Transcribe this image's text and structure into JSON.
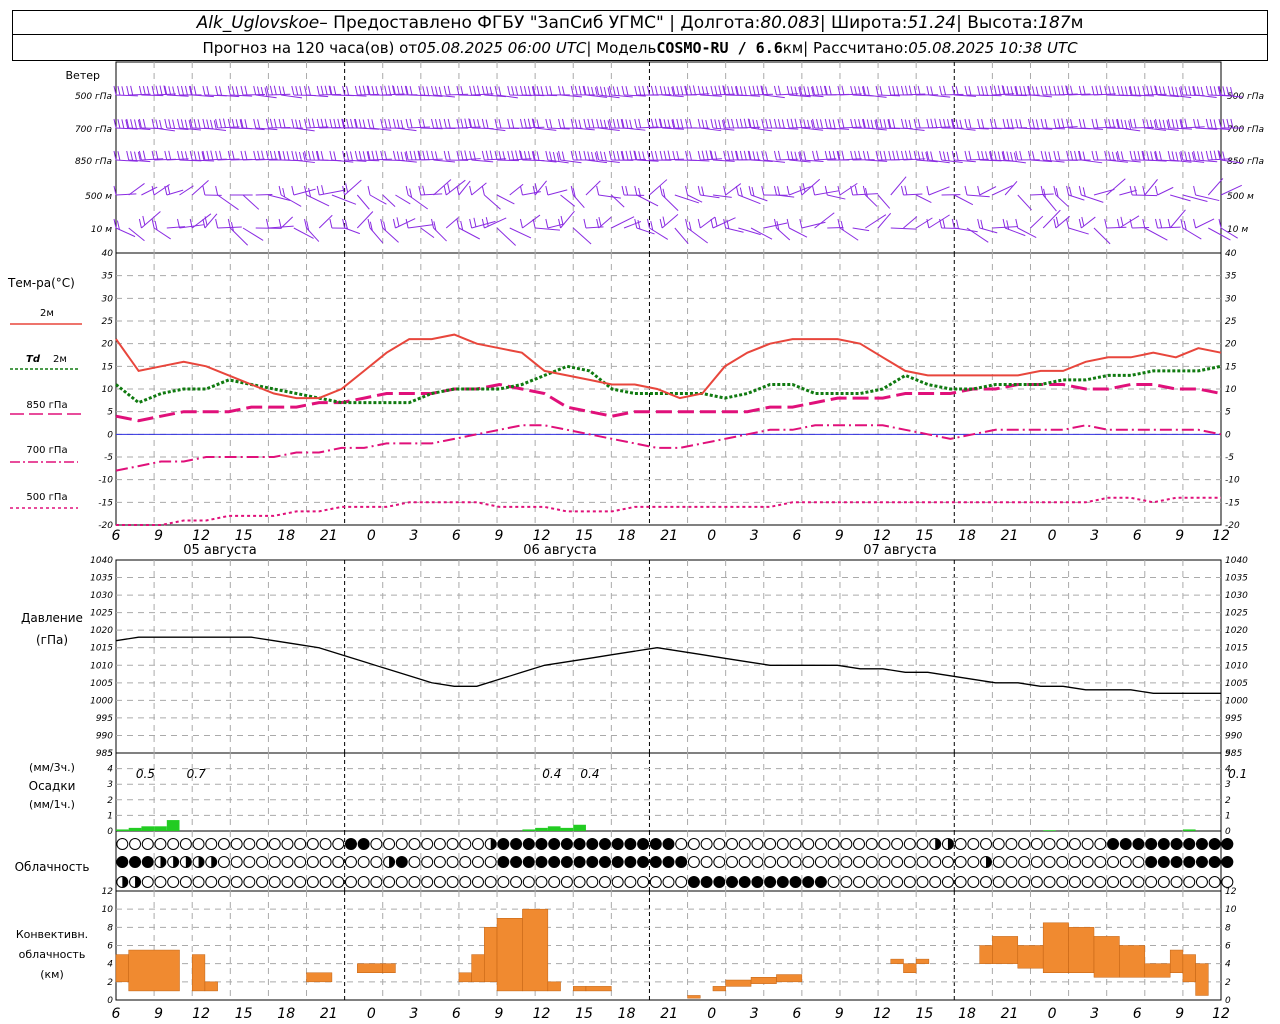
{
  "header": {
    "station": "Alk_Uglovskoe",
    "provider": " – Предоставлено ФГБУ \"ЗапСиб УГМС\" | Долгота: ",
    "lon": "80.083",
    "lat_label": " | Широта: ",
    "lat": "51.24",
    "alt_label": " | Высота: ",
    "alt": "187",
    "alt_unit": "м",
    "line2_a": "Прогноз на 120 часа(ов) от ",
    "run_time": "05.08.2025 06:00 UTC",
    "line2_b": " | Модель ",
    "model": "COSMO-RU / 6.6",
    "model_unit": "км",
    "line2_c": " | Рассчитано: ",
    "calc_time": "05.08.2025 10:38 UTC"
  },
  "labels": {
    "wind": "Ветер",
    "wind_levels": [
      "500 гПа",
      "700 гПа",
      "850 гПа",
      "500 м",
      "10  м"
    ],
    "temp_title": "Тем-ра(°С)",
    "t2m": "2м",
    "td": "Td",
    "td2m": "2м",
    "t850": "850 гПа",
    "t700": "700 гПа",
    "t500": "500 гПа",
    "pressure": "Давление",
    "pressure_unit": "(гПа)",
    "precip_top": "(мм/3ч.)",
    "precip": "Осадки",
    "precip_unit": "(мм/1ч.)",
    "cloud": "Облачность",
    "conv1": "Конвективн.",
    "conv2": "облачность",
    "conv3": "(км)",
    "dates": [
      "05 августа",
      "06 августа",
      "07 августа"
    ]
  },
  "colors": {
    "wind": "#8a2be2",
    "t2m": "#e8463c",
    "td": "#107a10",
    "t850": "#e0107a",
    "t700": "#e0107a",
    "t500": "#e0107a",
    "zero": "#3030e0",
    "precip": "#22cc22",
    "conv": "#f08a30",
    "pressure": "#000000"
  },
  "chart_data": {
    "type": "line",
    "x_hours_utc": [
      6,
      9,
      12,
      15,
      18,
      21,
      0,
      3,
      6,
      9,
      12,
      15,
      18,
      21,
      0,
      3,
      6,
      9,
      12,
      15,
      18,
      21,
      0,
      3,
      6,
      9,
      12
    ],
    "temperature": {
      "ylim": [
        -20,
        40
      ],
      "ticks": [
        40,
        35,
        30,
        25,
        20,
        15,
        10,
        5,
        0,
        -5,
        -10,
        -15,
        -20
      ],
      "t2m": [
        21,
        14,
        15,
        16,
        15,
        13,
        11,
        9,
        8,
        8,
        10,
        14,
        18,
        21,
        21,
        22,
        20,
        19,
        18,
        14,
        13,
        12,
        11,
        11,
        10,
        8,
        9,
        15,
        18,
        20,
        21,
        21,
        21,
        20,
        17,
        14,
        13,
        13,
        13,
        13,
        13,
        14,
        14,
        16,
        17,
        17,
        18,
        17,
        19,
        18
      ],
      "td2m": [
        11,
        7,
        9,
        10,
        10,
        12,
        11,
        10,
        9,
        8,
        7,
        7,
        7,
        7,
        9,
        10,
        10,
        10,
        11,
        13,
        15,
        14,
        10,
        9,
        9,
        9,
        9,
        8,
        9,
        11,
        11,
        9,
        9,
        9,
        10,
        13,
        11,
        10,
        10,
        11,
        11,
        11,
        12,
        12,
        13,
        13,
        14,
        14,
        14,
        15
      ],
      "t850": [
        4,
        3,
        4,
        5,
        5,
        5,
        6,
        6,
        6,
        7,
        7,
        8,
        9,
        9,
        9,
        10,
        10,
        11,
        10,
        9,
        6,
        5,
        4,
        5,
        5,
        5,
        5,
        5,
        5,
        6,
        6,
        7,
        8,
        8,
        8,
        9,
        9,
        9,
        10,
        10,
        11,
        11,
        11,
        10,
        10,
        11,
        11,
        10,
        10,
        9
      ],
      "t700": [
        -8,
        -7,
        -6,
        -6,
        -5,
        -5,
        -5,
        -5,
        -4,
        -4,
        -3,
        -3,
        -2,
        -2,
        -2,
        -1,
        0,
        1,
        2,
        2,
        1,
        0,
        -1,
        -2,
        -3,
        -3,
        -2,
        -1,
        0,
        1,
        1,
        2,
        2,
        2,
        2,
        1,
        0,
        -1,
        0,
        1,
        1,
        1,
        1,
        2,
        1,
        1,
        1,
        1,
        1,
        0
      ],
      "t500": [
        -20,
        -20,
        -20,
        -19,
        -19,
        -18,
        -18,
        -18,
        -17,
        -17,
        -16,
        -16,
        -16,
        -15,
        -15,
        -15,
        -15,
        -16,
        -16,
        -16,
        -17,
        -17,
        -17,
        -16,
        -16,
        -16,
        -16,
        -16,
        -16,
        -16,
        -15,
        -15,
        -15,
        -15,
        -15,
        -15,
        -15,
        -15,
        -15,
        -15,
        -15,
        -15,
        -15,
        -15,
        -14,
        -14,
        -15,
        -14,
        -14,
        -14
      ]
    },
    "pressure": {
      "ylim": [
        985,
        1040
      ],
      "ticks": [
        1040,
        1035,
        1030,
        1025,
        1020,
        1015,
        1010,
        1005,
        1000,
        995,
        990,
        985
      ],
      "values": [
        1017,
        1018,
        1018,
        1018,
        1018,
        1018,
        1018,
        1017,
        1016,
        1015,
        1013,
        1011,
        1009,
        1007,
        1005,
        1004,
        1004,
        1006,
        1008,
        1010,
        1011,
        1012,
        1013,
        1014,
        1015,
        1014,
        1013,
        1012,
        1011,
        1010,
        1010,
        1010,
        1010,
        1009,
        1009,
        1008,
        1008,
        1007,
        1006,
        1005,
        1005,
        1004,
        1004,
        1003,
        1003,
        1003,
        1002,
        1002,
        1002,
        1002
      ]
    },
    "precip": {
      "ylim": [
        0,
        5
      ],
      "ticks": [
        5,
        4,
        3,
        2,
        1,
        0
      ],
      "labels": [
        {
          "h": 2,
          "text": "0.5"
        },
        {
          "h": 6,
          "text": "0.7"
        },
        {
          "h": 34,
          "text": "0.4"
        },
        {
          "h": 37,
          "text": "0.4"
        },
        {
          "h": 88,
          "text": "0.1"
        }
      ],
      "bars": [
        {
          "h": 0,
          "v": 0.1
        },
        {
          "h": 1,
          "v": 0.2
        },
        {
          "h": 2,
          "v": 0.3
        },
        {
          "h": 3,
          "v": 0.3
        },
        {
          "h": 4,
          "v": 0.7
        },
        {
          "h": 32,
          "v": 0.1
        },
        {
          "h": 33,
          "v": 0.2
        },
        {
          "h": 34,
          "v": 0.3
        },
        {
          "h": 35,
          "v": 0.2
        },
        {
          "h": 36,
          "v": 0.4
        },
        {
          "h": 73,
          "v": 0.05
        },
        {
          "h": 84,
          "v": 0.1
        }
      ]
    },
    "convective": {
      "ylim": [
        0,
        12
      ],
      "ticks": [
        12,
        10,
        8,
        6,
        4,
        2,
        0
      ],
      "boxes": [
        {
          "h0": 0,
          "h1": 1,
          "lo": 2,
          "hi": 5
        },
        {
          "h0": 1,
          "h1": 5,
          "lo": 1,
          "hi": 5.5
        },
        {
          "h0": 6,
          "h1": 7,
          "lo": 1,
          "hi": 5
        },
        {
          "h0": 7,
          "h1": 8,
          "lo": 1,
          "hi": 2
        },
        {
          "h0": 15,
          "h1": 17,
          "lo": 2,
          "hi": 3
        },
        {
          "h0": 19,
          "h1": 21,
          "lo": 3,
          "hi": 4
        },
        {
          "h0": 21,
          "h1": 22,
          "lo": 3,
          "hi": 4
        },
        {
          "h0": 27,
          "h1": 28,
          "lo": 2,
          "hi": 3
        },
        {
          "h0": 28,
          "h1": 29,
          "lo": 2,
          "hi": 5
        },
        {
          "h0": 29,
          "h1": 30,
          "lo": 2,
          "hi": 8
        },
        {
          "h0": 30,
          "h1": 32,
          "lo": 1,
          "hi": 9
        },
        {
          "h0": 32,
          "h1": 34,
          "lo": 1,
          "hi": 10
        },
        {
          "h0": 34,
          "h1": 35,
          "lo": 1,
          "hi": 2
        },
        {
          "h0": 36,
          "h1": 37,
          "lo": 1,
          "hi": 1.5
        },
        {
          "h0": 37,
          "h1": 39,
          "lo": 1,
          "hi": 1.5
        },
        {
          "h0": 45,
          "h1": 46,
          "lo": 0.2,
          "hi": 0.5
        },
        {
          "h0": 47,
          "h1": 48,
          "lo": 1,
          "hi": 1.5
        },
        {
          "h0": 48,
          "h1": 50,
          "lo": 1.5,
          "hi": 2.2
        },
        {
          "h0": 50,
          "h1": 52,
          "lo": 1.8,
          "hi": 2.5
        },
        {
          "h0": 52,
          "h1": 54,
          "lo": 2,
          "hi": 2.8
        },
        {
          "h0": 61,
          "h1": 62,
          "lo": 4,
          "hi": 4.5
        },
        {
          "h0": 62,
          "h1": 63,
          "lo": 3,
          "hi": 4
        },
        {
          "h0": 63,
          "h1": 64,
          "lo": 4,
          "hi": 4.5
        },
        {
          "h0": 68,
          "h1": 69,
          "lo": 4,
          "hi": 6
        },
        {
          "h0": 69,
          "h1": 71,
          "lo": 4,
          "hi": 7
        },
        {
          "h0": 71,
          "h1": 73,
          "lo": 3.5,
          "hi": 6
        },
        {
          "h0": 73,
          "h1": 75,
          "lo": 3,
          "hi": 8.5
        },
        {
          "h0": 75,
          "h1": 77,
          "lo": 3,
          "hi": 8
        },
        {
          "h0": 77,
          "h1": 79,
          "lo": 2.5,
          "hi": 7
        },
        {
          "h0": 79,
          "h1": 81,
          "lo": 2.5,
          "hi": 6
        },
        {
          "h0": 81,
          "h1": 83,
          "lo": 2.5,
          "hi": 4
        },
        {
          "h0": 83,
          "h1": 84,
          "lo": 3,
          "hi": 5.5
        },
        {
          "h0": 84,
          "h1": 85,
          "lo": 2,
          "hi": 5
        },
        {
          "h0": 85,
          "h1": 86,
          "lo": 0.5,
          "hi": 4
        }
      ]
    },
    "cloud_rows": [
      "eeeeeeeeeeeeeeeeeeffeeeeeeeeehffffffffffffffeeeeeeeeeeeeeeeeeeeehheeeeeeeeeeeefffffffffffffffffffffff",
      "fffhhhhheeeeeeeeeeeeehfeeeeeeefffffffffffffffeeeeeeeeeeeeeeeeeeeeeeeheeeeeeeeeeeefffffffffffffffffffff",
      "hheeeeeeeeeeeeeeeeeeeeeeeeeeeeeeeeeeeeeeeeeeefffffffffffeeeeeeeeeeeeeeeeeeeeeeeeeeeeeeeeeeeeeehffffhh"
    ]
  }
}
